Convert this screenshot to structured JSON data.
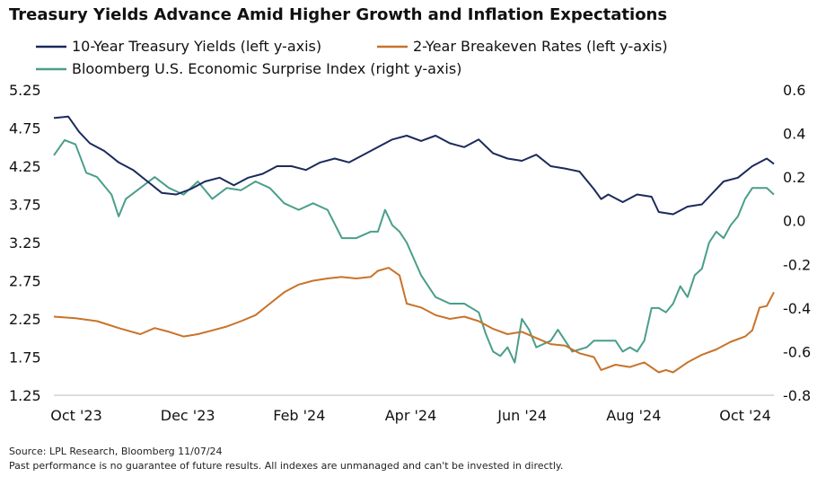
{
  "chart_data": {
    "type": "line",
    "title": "Treasury Yields Advance Amid Higher Growth and Inflation Expectations",
    "legend_position": "top",
    "x_labels": [
      "Oct '23",
      "Dec '23",
      "Feb '24",
      "Apr '24",
      "Jun '24",
      "Aug '24",
      "Oct '24"
    ],
    "left_axis": {
      "ylim": [
        1.25,
        5.25
      ],
      "ticks": [
        "5.25",
        "4.75",
        "4.25",
        "3.75",
        "3.25",
        "2.75",
        "2.25",
        "1.75",
        "1.25"
      ]
    },
    "right_axis": {
      "ylim": [
        -0.8,
        0.6
      ],
      "ticks": [
        "0.6",
        "0.4",
        "0.2",
        "0.0",
        "-0.2",
        "-0.4",
        "-0.6",
        "-0.8"
      ]
    },
    "series": [
      {
        "name": "10-Year Treasury Yields (left y-axis)",
        "axis": "left",
        "color": "#1b2a5c",
        "points": [
          [
            0,
            4.88
          ],
          [
            0.02,
            4.9
          ],
          [
            0.035,
            4.7
          ],
          [
            0.05,
            4.55
          ],
          [
            0.07,
            4.45
          ],
          [
            0.09,
            4.3
          ],
          [
            0.11,
            4.2
          ],
          [
            0.13,
            4.05
          ],
          [
            0.15,
            3.9
          ],
          [
            0.17,
            3.88
          ],
          [
            0.19,
            3.95
          ],
          [
            0.21,
            4.05
          ],
          [
            0.23,
            4.1
          ],
          [
            0.25,
            4.0
          ],
          [
            0.27,
            4.1
          ],
          [
            0.29,
            4.15
          ],
          [
            0.31,
            4.25
          ],
          [
            0.33,
            4.25
          ],
          [
            0.35,
            4.2
          ],
          [
            0.37,
            4.3
          ],
          [
            0.39,
            4.35
          ],
          [
            0.41,
            4.3
          ],
          [
            0.43,
            4.4
          ],
          [
            0.45,
            4.5
          ],
          [
            0.47,
            4.6
          ],
          [
            0.49,
            4.65
          ],
          [
            0.51,
            4.58
          ],
          [
            0.53,
            4.65
          ],
          [
            0.55,
            4.55
          ],
          [
            0.57,
            4.5
          ],
          [
            0.59,
            4.6
          ],
          [
            0.61,
            4.42
          ],
          [
            0.63,
            4.35
          ],
          [
            0.65,
            4.32
          ],
          [
            0.67,
            4.4
          ],
          [
            0.69,
            4.25
          ],
          [
            0.71,
            4.22
          ],
          [
            0.73,
            4.18
          ],
          [
            0.75,
            3.95
          ],
          [
            0.76,
            3.82
          ],
          [
            0.77,
            3.88
          ],
          [
            0.79,
            3.78
          ],
          [
            0.81,
            3.88
          ],
          [
            0.83,
            3.85
          ],
          [
            0.84,
            3.65
          ],
          [
            0.86,
            3.62
          ],
          [
            0.88,
            3.72
          ],
          [
            0.9,
            3.75
          ],
          [
            0.91,
            3.85
          ],
          [
            0.93,
            4.05
          ],
          [
            0.95,
            4.1
          ],
          [
            0.97,
            4.25
          ],
          [
            0.99,
            4.35
          ],
          [
            1.0,
            4.28
          ]
        ]
      },
      {
        "name": "2-Year Breakeven Rates (left y-axis)",
        "axis": "left",
        "color": "#c8732a",
        "points": [
          [
            0,
            2.28
          ],
          [
            0.03,
            2.26
          ],
          [
            0.06,
            2.22
          ],
          [
            0.09,
            2.13
          ],
          [
            0.12,
            2.05
          ],
          [
            0.14,
            2.13
          ],
          [
            0.16,
            2.08
          ],
          [
            0.18,
            2.02
          ],
          [
            0.2,
            2.05
          ],
          [
            0.22,
            2.1
          ],
          [
            0.24,
            2.15
          ],
          [
            0.26,
            2.22
          ],
          [
            0.28,
            2.3
          ],
          [
            0.3,
            2.45
          ],
          [
            0.32,
            2.6
          ],
          [
            0.34,
            2.7
          ],
          [
            0.36,
            2.75
          ],
          [
            0.38,
            2.78
          ],
          [
            0.4,
            2.8
          ],
          [
            0.42,
            2.78
          ],
          [
            0.44,
            2.8
          ],
          [
            0.45,
            2.88
          ],
          [
            0.465,
            2.92
          ],
          [
            0.48,
            2.82
          ],
          [
            0.49,
            2.45
          ],
          [
            0.51,
            2.4
          ],
          [
            0.53,
            2.3
          ],
          [
            0.55,
            2.25
          ],
          [
            0.57,
            2.28
          ],
          [
            0.59,
            2.22
          ],
          [
            0.61,
            2.12
          ],
          [
            0.63,
            2.05
          ],
          [
            0.65,
            2.08
          ],
          [
            0.67,
            2.0
          ],
          [
            0.69,
            1.92
          ],
          [
            0.71,
            1.9
          ],
          [
            0.73,
            1.8
          ],
          [
            0.75,
            1.75
          ],
          [
            0.76,
            1.58
          ],
          [
            0.78,
            1.65
          ],
          [
            0.8,
            1.62
          ],
          [
            0.82,
            1.68
          ],
          [
            0.84,
            1.55
          ],
          [
            0.85,
            1.58
          ],
          [
            0.86,
            1.55
          ],
          [
            0.88,
            1.68
          ],
          [
            0.9,
            1.78
          ],
          [
            0.92,
            1.85
          ],
          [
            0.94,
            1.95
          ],
          [
            0.96,
            2.02
          ],
          [
            0.97,
            2.1
          ],
          [
            0.98,
            2.4
          ],
          [
            0.99,
            2.42
          ],
          [
            1.0,
            2.6
          ]
        ]
      },
      {
        "name": "Bloomberg U.S. Economic Surprise Index (right y-axis)",
        "axis": "right",
        "color": "#4a9e8a",
        "points": [
          [
            0,
            0.3
          ],
          [
            0.015,
            0.37
          ],
          [
            0.03,
            0.35
          ],
          [
            0.045,
            0.22
          ],
          [
            0.06,
            0.2
          ],
          [
            0.08,
            0.12
          ],
          [
            0.09,
            0.02
          ],
          [
            0.1,
            0.1
          ],
          [
            0.12,
            0.15
          ],
          [
            0.14,
            0.2
          ],
          [
            0.16,
            0.15
          ],
          [
            0.18,
            0.12
          ],
          [
            0.2,
            0.18
          ],
          [
            0.22,
            0.1
          ],
          [
            0.24,
            0.15
          ],
          [
            0.26,
            0.14
          ],
          [
            0.28,
            0.18
          ],
          [
            0.3,
            0.15
          ],
          [
            0.32,
            0.08
          ],
          [
            0.34,
            0.05
          ],
          [
            0.36,
            0.08
          ],
          [
            0.38,
            0.05
          ],
          [
            0.4,
            -0.08
          ],
          [
            0.42,
            -0.08
          ],
          [
            0.44,
            -0.05
          ],
          [
            0.45,
            -0.05
          ],
          [
            0.46,
            0.05
          ],
          [
            0.47,
            -0.02
          ],
          [
            0.48,
            -0.05
          ],
          [
            0.49,
            -0.1
          ],
          [
            0.51,
            -0.25
          ],
          [
            0.53,
            -0.35
          ],
          [
            0.55,
            -0.38
          ],
          [
            0.57,
            -0.38
          ],
          [
            0.59,
            -0.42
          ],
          [
            0.6,
            -0.52
          ],
          [
            0.61,
            -0.6
          ],
          [
            0.62,
            -0.62
          ],
          [
            0.63,
            -0.58
          ],
          [
            0.64,
            -0.65
          ],
          [
            0.65,
            -0.45
          ],
          [
            0.66,
            -0.5
          ],
          [
            0.67,
            -0.58
          ],
          [
            0.69,
            -0.55
          ],
          [
            0.7,
            -0.5
          ],
          [
            0.72,
            -0.6
          ],
          [
            0.74,
            -0.58
          ],
          [
            0.75,
            -0.55
          ],
          [
            0.76,
            -0.55
          ],
          [
            0.78,
            -0.55
          ],
          [
            0.79,
            -0.6
          ],
          [
            0.8,
            -0.58
          ],
          [
            0.81,
            -0.6
          ],
          [
            0.82,
            -0.55
          ],
          [
            0.83,
            -0.4
          ],
          [
            0.84,
            -0.4
          ],
          [
            0.85,
            -0.42
          ],
          [
            0.86,
            -0.38
          ],
          [
            0.87,
            -0.3
          ],
          [
            0.88,
            -0.35
          ],
          [
            0.89,
            -0.25
          ],
          [
            0.9,
            -0.22
          ],
          [
            0.91,
            -0.1
          ],
          [
            0.92,
            -0.05
          ],
          [
            0.93,
            -0.08
          ],
          [
            0.94,
            -0.02
          ],
          [
            0.95,
            0.02
          ],
          [
            0.96,
            0.1
          ],
          [
            0.97,
            0.15
          ],
          [
            0.98,
            0.15
          ],
          [
            0.99,
            0.15
          ],
          [
            1.0,
            0.12
          ]
        ]
      }
    ]
  },
  "footer": {
    "source": "Source: LPL Research, Bloomberg 11/07/24",
    "disclaimer": "Past performance is no guarantee of future results. All indexes are unmanaged and can't be invested in directly."
  }
}
